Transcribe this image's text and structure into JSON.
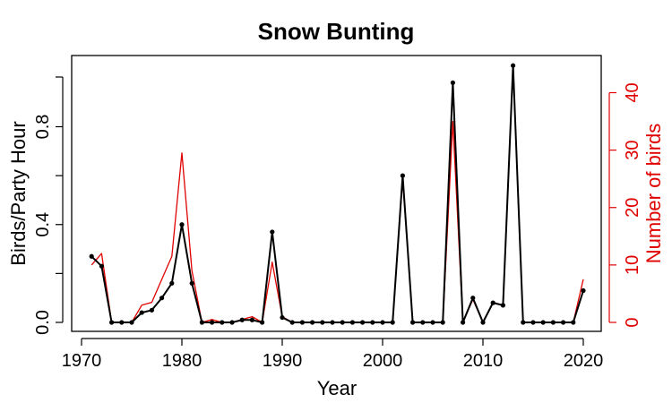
{
  "chart_data": {
    "type": "line",
    "title": "Snow Bunting",
    "xlabel": "Year",
    "ylabel": "Birds/Party Hour",
    "y2label": "Number of birds",
    "xlim": [
      1970,
      2020
    ],
    "ylim": [
      0,
      1.0
    ],
    "y2lim": [
      0,
      44
    ],
    "x_ticks": [
      "1970",
      "1980",
      "1990",
      "2000",
      "2010",
      "2020"
    ],
    "y_ticks": [
      "0.0",
      "0.4",
      "0.8"
    ],
    "y2_ticks": [
      "0",
      "10",
      "20",
      "30",
      "40"
    ],
    "x": [
      1971,
      1972,
      1973,
      1974,
      1975,
      1976,
      1977,
      1978,
      1979,
      1980,
      1981,
      1982,
      1983,
      1984,
      1985,
      1986,
      1987,
      1988,
      1989,
      1990,
      1991,
      1992,
      1993,
      1994,
      1995,
      1996,
      1997,
      1998,
      1999,
      2000,
      2001,
      2002,
      2003,
      2004,
      2005,
      2006,
      2007,
      2008,
      2009,
      2010,
      2011,
      2012,
      2013,
      2014,
      2015,
      2016,
      2017,
      2018,
      2019,
      2020
    ],
    "series": [
      {
        "name": "Birds/Party Hour",
        "axis": "left",
        "color": "#000000",
        "markers": true,
        "values": [
          0.27,
          0.23,
          0.0,
          0.0,
          0.0,
          0.04,
          0.05,
          0.1,
          0.16,
          0.4,
          0.16,
          0.0,
          0.0,
          0.0,
          0.0,
          0.01,
          0.01,
          0.0,
          0.37,
          0.02,
          0.0,
          0.0,
          0.0,
          0.0,
          0.0,
          0.0,
          0.0,
          0.0,
          0.0,
          0.0,
          0.0,
          0.6,
          0.0,
          0.0,
          0.0,
          0.0,
          0.98,
          0.0,
          0.1,
          0.0,
          0.08,
          0.07,
          1.05,
          0.0,
          0.0,
          0.0,
          0.0,
          0.0,
          0.0,
          0.13
        ]
      },
      {
        "name": "Number of birds",
        "axis": "right",
        "color": "#e00000",
        "markers": false,
        "values": [
          10,
          12,
          0,
          0,
          0,
          3,
          3.5,
          7.5,
          11.5,
          29.5,
          9,
          0,
          0.5,
          0,
          0,
          0.5,
          1,
          0,
          10.5,
          1,
          0,
          0,
          0,
          0,
          0,
          0,
          0,
          0,
          0,
          0,
          0,
          25,
          0,
          0,
          0,
          0,
          35,
          0,
          4,
          0,
          3.5,
          3,
          44.5,
          0,
          0,
          0,
          0,
          0,
          0,
          7.5
        ]
      }
    ],
    "grid": false,
    "legend": "none"
  }
}
